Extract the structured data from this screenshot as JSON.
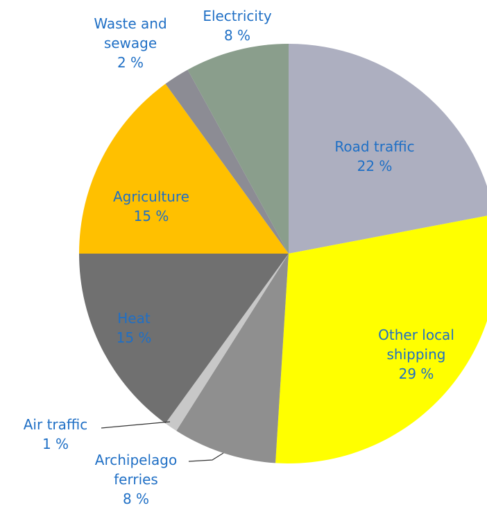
{
  "chart_data": {
    "type": "pie",
    "categories": [
      "Road traffic",
      "Other local shipping",
      "Archipelago ferries",
      "Air traffic",
      "Heat",
      "Agriculture",
      "Waste and sewage",
      "Electricity"
    ],
    "values": [
      22,
      29,
      8,
      1,
      15,
      15,
      2,
      8
    ],
    "value_labels": [
      "22 %",
      "29 %",
      "8 %",
      "1 %",
      "15 %",
      "15 %",
      "2 %",
      "8 %"
    ],
    "colors": [
      "#adafc0",
      "#ffff00",
      "#8f8f8f",
      "#c8c8c8",
      "#707070",
      "#ffc000",
      "#8c8c94",
      "#8a9e8c"
    ]
  }
}
